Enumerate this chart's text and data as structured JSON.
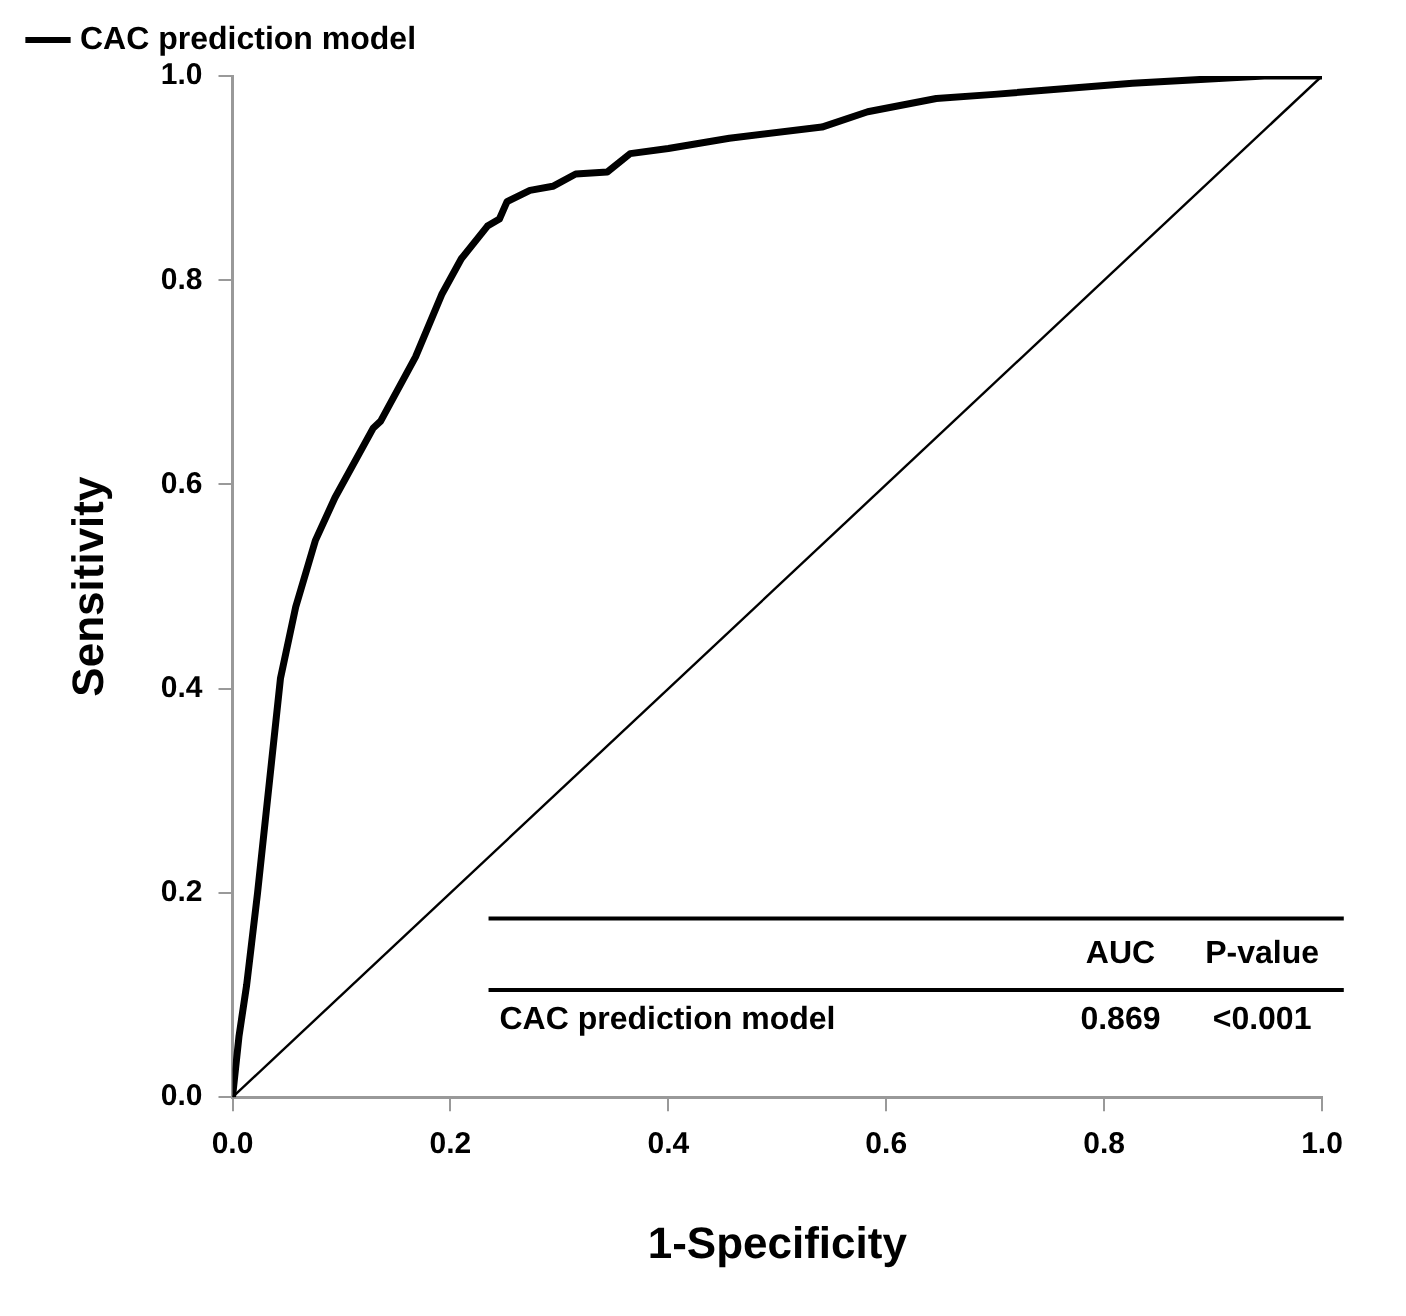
{
  "chart_data": {
    "type": "line",
    "xlabel": "1-Specificity",
    "ylabel": "Sensitivity",
    "xlim": [
      0,
      1
    ],
    "ylim": [
      0,
      1
    ],
    "xticks": [
      {
        "value": 0,
        "label": "0.0"
      },
      {
        "value": 0.2,
        "label": "0.2"
      },
      {
        "value": 0.4,
        "label": "0.4"
      },
      {
        "value": 0.6,
        "label": "0.6"
      },
      {
        "value": 0.8,
        "label": "0.8"
      },
      {
        "value": 1,
        "label": "1.0"
      }
    ],
    "yticks": [
      {
        "value": 0,
        "label": "0.0"
      },
      {
        "value": 0.2,
        "label": "0.2"
      },
      {
        "value": 0.4,
        "label": "0.4"
      },
      {
        "value": 0.6,
        "label": "0.6"
      },
      {
        "value": 0.8,
        "label": "0.8"
      },
      {
        "value": 1,
        "label": "1.0"
      }
    ],
    "grid": false,
    "legend": "top left",
    "marker": "none",
    "series": [
      {
        "name": "CAC prediction model",
        "color": "#000000",
        "line_style": "solid",
        "x": [
          0,
          0.006,
          0.013,
          0.023,
          0.034,
          0.044,
          0.058,
          0.076,
          0.094,
          0.129,
          0.136,
          0.168,
          0.192,
          0.21,
          0.234,
          0.245,
          0.252,
          0.273,
          0.294,
          0.315,
          0.344,
          0.365,
          0.4,
          0.456,
          0.541,
          0.583,
          0.646,
          0.699,
          0.826,
          0.947,
          1.0
        ],
        "values": [
          0,
          0.06,
          0.11,
          0.2,
          0.31,
          0.41,
          0.48,
          0.545,
          0.587,
          0.655,
          0.662,
          0.725,
          0.786,
          0.821,
          0.853,
          0.86,
          0.877,
          0.888,
          0.892,
          0.904,
          0.906,
          0.924,
          0.929,
          0.939,
          0.95,
          0.965,
          0.978,
          0.982,
          0.993,
          1.0,
          1.0
        ]
      },
      {
        "color": "#000000",
        "line_style": "solid",
        "x": [
          0,
          1
        ],
        "values": [
          0,
          1
        ]
      }
    ],
    "annotations": [
      "AUC",
      "P-value",
      "CAC prediction model",
      "0.869",
      "<0.001"
    ]
  }
}
